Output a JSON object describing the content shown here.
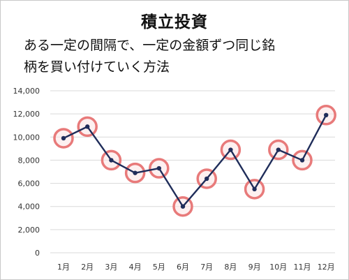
{
  "title": "積立投資",
  "description": {
    "line1": "ある一定の間隔で、一定の金額ずつ同じ銘",
    "line2": "柄を買い付けていく方法"
  },
  "colors": {
    "line": "#1f2d5a",
    "marker": "#1f2d5a",
    "highlight": "#e87a7a",
    "grid": "#d9d9d9"
  },
  "chart_data": {
    "type": "line",
    "categories": [
      "1月",
      "2月",
      "3月",
      "4月",
      "5月",
      "6月",
      "7月",
      "8月",
      "9月",
      "10月",
      "11月",
      "12月"
    ],
    "series": [
      {
        "values": [
          9900,
          10900,
          8000,
          6900,
          7300,
          4000,
          6400,
          8900,
          5500,
          8900,
          8000,
          11900
        ]
      }
    ],
    "yticks": [
      "0",
      "2,000",
      "4,000",
      "6,000",
      "8,000",
      "10,000",
      "12,000",
      "14,000"
    ],
    "ylim": [
      0,
      14000
    ],
    "grid": true,
    "highlighted_points": "all"
  }
}
